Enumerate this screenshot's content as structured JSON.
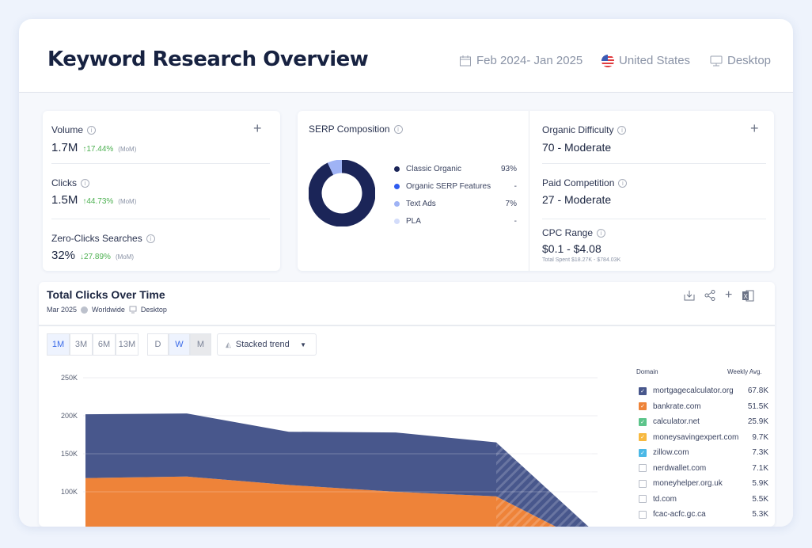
{
  "header": {
    "title": "Keyword Research Overview",
    "date_range": "Feb 2024- Jan 2025",
    "country": "United States",
    "device": "Desktop"
  },
  "metrics": [
    {
      "label": "Volume",
      "value": "1.7M",
      "change": "↑17.44%",
      "period": "(MoM)",
      "direction": "up"
    },
    {
      "label": "Clicks",
      "value": "1.5M",
      "change": "↑44.73%",
      "period": "(MoM)",
      "direction": "up"
    },
    {
      "label": "Zero-Clicks Searches",
      "value": "32%",
      "change": "↓27.89%",
      "period": "(MoM)",
      "direction": "down"
    }
  ],
  "serp": {
    "title": "SERP Composition",
    "items": [
      {
        "label": "Classic Organic",
        "value": "93%",
        "color": "#1b2558",
        "pct": 93
      },
      {
        "label": "Organic SERP Features",
        "value": "-",
        "color": "#2f5cf0",
        "pct": 0
      },
      {
        "label": "Text Ads",
        "value": "7%",
        "color": "#9fb3f5",
        "pct": 7
      },
      {
        "label": "PLA",
        "value": "-",
        "color": "#d3dcfa",
        "pct": 0
      }
    ]
  },
  "difficulty": {
    "organic_label": "Organic Difficulty",
    "organic_value": "70 - Moderate",
    "paid_label": "Paid Competition",
    "paid_value": "27 - Moderate",
    "cpc_label": "CPC Range",
    "cpc_value": "$0.1 - $4.08",
    "total_spent": "Total Spent $18.27K - $784.03K"
  },
  "clicks_chart": {
    "title": "Total Clicks Over Time",
    "date": "Mar 2025",
    "location": "Worldwide",
    "device": "Desktop",
    "ranges": [
      "1M",
      "3M",
      "6M",
      "13M"
    ],
    "selected_range": "1M",
    "granularity": [
      "D",
      "W",
      "M"
    ],
    "selected_granularity": "W",
    "chart_type": "Stacked trend",
    "legend_header_domain": "Domain",
    "legend_header_avg": "Weekly Avg.",
    "domains": [
      {
        "name": "mortgagecalculator.org",
        "avg": "67.8K",
        "checked": true,
        "color": "#48578c"
      },
      {
        "name": "bankrate.com",
        "avg": "51.5K",
        "checked": true,
        "color": "#ee8339"
      },
      {
        "name": "calculator.net",
        "avg": "25.9K",
        "checked": true,
        "color": "#5cc48a"
      },
      {
        "name": "moneysavingexpert.com",
        "avg": "9.7K",
        "checked": true,
        "color": "#f7b940"
      },
      {
        "name": "zillow.com",
        "avg": "7.3K",
        "checked": true,
        "color": "#4bb8e6"
      },
      {
        "name": "nerdwallet.com",
        "avg": "7.1K",
        "checked": false
      },
      {
        "name": "moneyhelper.org.uk",
        "avg": "5.9K",
        "checked": false
      },
      {
        "name": "td.com",
        "avg": "5.5K",
        "checked": false
      },
      {
        "name": "fcac-acfc.gc.ca",
        "avg": "5.3K",
        "checked": false
      }
    ]
  },
  "chart_data": {
    "type": "area",
    "stacked": true,
    "yticks": [
      "250K",
      "200K",
      "150K",
      "100K"
    ],
    "ylim": [
      0,
      250000
    ],
    "grid": true,
    "x": [
      1,
      2,
      3,
      4,
      5,
      6
    ],
    "series": [
      {
        "name": "calculator.net",
        "color": "#5cc48a",
        "values": [
          5000,
          3000,
          2000,
          1000,
          1000,
          0
        ]
      },
      {
        "name": "bankrate.com",
        "color": "#ee8339",
        "values": [
          113000,
          117000,
          107000,
          99000,
          93000,
          30000
        ]
      },
      {
        "name": "mortgagecalculator.org",
        "color": "#48578c",
        "values": [
          84000,
          83000,
          70000,
          78000,
          71000,
          20000
        ]
      }
    ],
    "partial_from_index": 4
  }
}
